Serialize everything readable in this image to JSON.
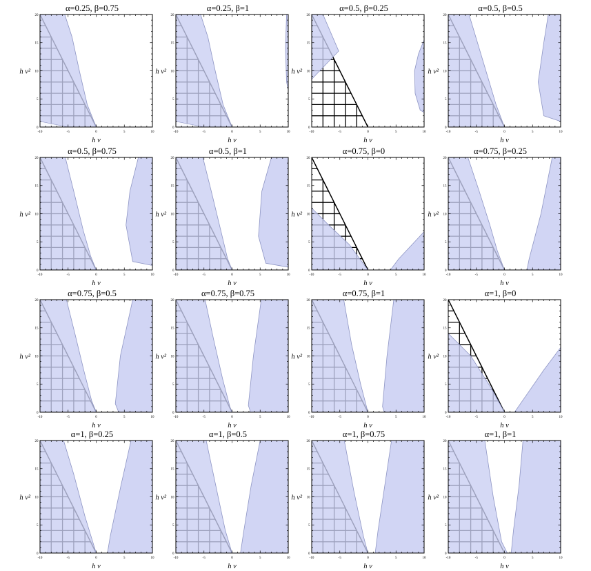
{
  "figure": {
    "panels": [
      {
        "title": "α=0.25, β=0.75"
      },
      {
        "title": "α=0.25, β=1"
      },
      {
        "title": "α=0.5, β=0.25"
      },
      {
        "title": "α=0.5, β=0.5"
      },
      {
        "title": "α=0.5, β=0.75"
      },
      {
        "title": "α=0.5, β=1"
      },
      {
        "title": "α=0.75, β=0"
      },
      {
        "title": "α=0.75, β=0.25"
      },
      {
        "title": "α=0.75, β=0.5"
      },
      {
        "title": "α=0.75, β=0.75"
      },
      {
        "title": "α=0.75, β=1"
      },
      {
        "title": "α=1, β=0"
      },
      {
        "title": "α=1, β=0.25"
      },
      {
        "title": "α=1, β=0.5"
      },
      {
        "title": "α=1, β=0.75"
      },
      {
        "title": "α=1, β=1"
      }
    ]
  },
  "chart_data": {
    "type": "area",
    "layout": "4x4 grid of region plots",
    "xlabel": "h ν",
    "ylabel": "h ν²",
    "xlim": [
      -10,
      10
    ],
    "ylim": [
      0,
      20
    ],
    "x_ticks": [
      -10,
      -5,
      0,
      5,
      10
    ],
    "y_ticks": [
      0,
      5,
      10,
      15,
      20
    ],
    "colors": {
      "region_fill": "#c9cef2",
      "region_edge": "#8e95c4",
      "hatch": "#000000",
      "frame": "#000000"
    },
    "hatched_region": "triangle bounded by x=-10, y=0 and the line y=-2x",
    "panels": [
      {
        "alpha": 0.25,
        "beta": 0.75,
        "left_region": [
          [
            -10,
            20
          ],
          [
            -5.6,
            20
          ],
          [
            -4.3,
            16
          ],
          [
            -3,
            10
          ],
          [
            -1.6,
            4
          ],
          [
            0,
            0
          ],
          [
            -10,
            0
          ]
        ],
        "left_white_wedge": [
          [
            -10,
            1
          ],
          [
            -10,
            0
          ],
          [
            -5,
            0
          ]
        ],
        "right_region": null
      },
      {
        "alpha": 0.25,
        "beta": 1,
        "left_region": [
          [
            -10,
            20
          ],
          [
            -5.6,
            20
          ],
          [
            -4.3,
            16
          ],
          [
            -3,
            10
          ],
          [
            -1.6,
            4
          ],
          [
            0,
            0
          ],
          [
            -10,
            0
          ]
        ],
        "left_white_wedge": [
          [
            -10,
            1
          ],
          [
            -10,
            0
          ],
          [
            -5,
            0
          ]
        ],
        "right_region": [
          [
            9.7,
            20
          ],
          [
            10,
            20
          ],
          [
            10,
            6.6
          ],
          [
            9.7,
            8
          ],
          [
            9.5,
            14
          ]
        ]
      },
      {
        "alpha": 0.5,
        "beta": 0.25,
        "left_region": [
          [
            -10,
            20
          ],
          [
            -8,
            20
          ],
          [
            -5.2,
            13.5
          ],
          [
            -10,
            8.5
          ]
        ],
        "right_region": [
          [
            10,
            15.5
          ],
          [
            10,
            2.6
          ],
          [
            9.3,
            3
          ],
          [
            8.4,
            6
          ],
          [
            8.3,
            10
          ],
          [
            9,
            13
          ]
        ]
      },
      {
        "alpha": 0.5,
        "beta": 0.5,
        "left_region": [
          [
            -10,
            20
          ],
          [
            -6.3,
            20
          ],
          [
            -4.5,
            14
          ],
          [
            -2.7,
            8
          ],
          [
            -1.5,
            4
          ],
          [
            0,
            0
          ],
          [
            -10,
            0
          ]
        ],
        "right_region": [
          [
            7.8,
            20
          ],
          [
            10,
            20
          ],
          [
            10,
            1
          ],
          [
            7,
            2
          ],
          [
            6,
            8
          ],
          [
            7,
            15
          ]
        ]
      },
      {
        "alpha": 0.5,
        "beta": 0.75,
        "left_region": [
          [
            -10,
            20
          ],
          [
            -5.5,
            20
          ],
          [
            -4,
            14
          ],
          [
            -2.3,
            7
          ],
          [
            -1,
            2.5
          ],
          [
            0,
            0
          ],
          [
            -10,
            0
          ]
        ],
        "right_region": [
          [
            7.5,
            20
          ],
          [
            10,
            20
          ],
          [
            10,
            0.8
          ],
          [
            6.5,
            1.5
          ],
          [
            5.3,
            8
          ],
          [
            6,
            14
          ]
        ]
      },
      {
        "alpha": 0.5,
        "beta": 1,
        "left_region": [
          [
            -10,
            20
          ],
          [
            -5.2,
            20
          ],
          [
            -3.7,
            14
          ],
          [
            -2,
            7
          ],
          [
            -0.8,
            2
          ],
          [
            0,
            0
          ],
          [
            -10,
            0
          ]
        ],
        "right_region": [
          [
            7,
            20
          ],
          [
            10,
            20
          ],
          [
            10,
            0.5
          ],
          [
            6,
            1.2
          ],
          [
            4.7,
            6
          ],
          [
            5.3,
            14
          ]
        ]
      },
      {
        "alpha": 0.75,
        "beta": 0,
        "left_region": [
          [
            -10,
            11
          ],
          [
            -7,
            8
          ],
          [
            -3.3,
            4.5
          ],
          [
            0,
            0
          ],
          [
            -10,
            0
          ]
        ],
        "right_region": [
          [
            4,
            0
          ],
          [
            10,
            0
          ],
          [
            10,
            6.8
          ],
          [
            5.5,
            2
          ]
        ]
      },
      {
        "alpha": 0.75,
        "beta": 0.25,
        "left_region": [
          [
            -10,
            20
          ],
          [
            -6.5,
            20
          ],
          [
            -4.5,
            14
          ],
          [
            -2.6,
            8
          ],
          [
            -1.3,
            3.5
          ],
          [
            0,
            0
          ],
          [
            -10,
            0
          ]
        ],
        "right_region": [
          [
            8.5,
            20
          ],
          [
            10,
            20
          ],
          [
            10,
            0
          ],
          [
            4,
            0
          ],
          [
            4.4,
            2
          ],
          [
            6.5,
            10
          ]
        ]
      },
      {
        "alpha": 0.75,
        "beta": 0.5,
        "left_region": [
          [
            -10,
            20
          ],
          [
            -5.3,
            20
          ],
          [
            -3.8,
            14
          ],
          [
            -2.1,
            7
          ],
          [
            -0.8,
            2
          ],
          [
            0,
            0
          ],
          [
            -10,
            0
          ]
        ],
        "right_region": [
          [
            6.5,
            20
          ],
          [
            10,
            20
          ],
          [
            10,
            0
          ],
          [
            4,
            0
          ],
          [
            3.4,
            1.5
          ],
          [
            4.3,
            10
          ]
        ]
      },
      {
        "alpha": 0.75,
        "beta": 0.75,
        "left_region": [
          [
            -10,
            20
          ],
          [
            -4.8,
            20
          ],
          [
            -3.3,
            13
          ],
          [
            -1.7,
            6
          ],
          [
            -0.4,
            1
          ],
          [
            0,
            0
          ],
          [
            -10,
            0
          ]
        ],
        "right_region": [
          [
            5.2,
            20
          ],
          [
            10,
            20
          ],
          [
            10,
            0
          ],
          [
            3.3,
            0
          ],
          [
            2.9,
            1.2
          ],
          [
            3.8,
            10
          ]
        ]
      },
      {
        "alpha": 0.75,
        "beta": 1,
        "left_region": [
          [
            -10,
            20
          ],
          [
            -4.3,
            20
          ],
          [
            -2.9,
            12
          ],
          [
            -1.3,
            5
          ],
          [
            0,
            0
          ],
          [
            -10,
            0
          ]
        ],
        "right_region": [
          [
            4.6,
            20
          ],
          [
            10,
            20
          ],
          [
            10,
            0
          ],
          [
            2.9,
            0
          ],
          [
            2.6,
            1
          ],
          [
            3.4,
            10
          ]
        ]
      },
      {
        "alpha": 1,
        "beta": 0,
        "left_region": [
          [
            -10,
            14
          ],
          [
            -6,
            10
          ],
          [
            -2.5,
            4.5
          ],
          [
            0,
            0
          ],
          [
            -10,
            0
          ]
        ],
        "right_region": [
          [
            1.8,
            0
          ],
          [
            10,
            0
          ],
          [
            10,
            11.5
          ],
          [
            7,
            7.5
          ]
        ]
      },
      {
        "alpha": 1,
        "beta": 0.25,
        "left_region": [
          [
            -10,
            20
          ],
          [
            -5.8,
            20
          ],
          [
            -4,
            14
          ],
          [
            -2,
            6.5
          ],
          [
            0,
            0
          ],
          [
            -10,
            0
          ]
        ],
        "right_region": [
          [
            6.2,
            20
          ],
          [
            10,
            20
          ],
          [
            10,
            0
          ],
          [
            2,
            0
          ],
          [
            2.5,
            3
          ],
          [
            4.4,
            12
          ]
        ]
      },
      {
        "alpha": 1,
        "beta": 0.5,
        "left_region": [
          [
            -10,
            20
          ],
          [
            -4.6,
            20
          ],
          [
            -2.9,
            12
          ],
          [
            -1.2,
            4
          ],
          [
            0,
            0
          ],
          [
            -10,
            0
          ]
        ],
        "right_region": [
          [
            5,
            20
          ],
          [
            10,
            20
          ],
          [
            10,
            0
          ],
          [
            1.5,
            0
          ],
          [
            2.1,
            4
          ],
          [
            3.4,
            12
          ]
        ]
      },
      {
        "alpha": 1,
        "beta": 0.75,
        "left_region": [
          [
            -10,
            20
          ],
          [
            -4.2,
            20
          ],
          [
            -2.5,
            11
          ],
          [
            -0.8,
            3
          ],
          [
            0,
            0
          ],
          [
            -10,
            0
          ]
        ],
        "right_region": [
          [
            4.2,
            20
          ],
          [
            10,
            20
          ],
          [
            10,
            0
          ],
          [
            1.3,
            0
          ],
          [
            1.8,
            4
          ],
          [
            3,
            12
          ]
        ]
      },
      {
        "alpha": 1,
        "beta": 1,
        "left_region": [
          [
            -10,
            20
          ],
          [
            -3.5,
            20
          ],
          [
            -2,
            10
          ],
          [
            -0.5,
            2
          ],
          [
            0.5,
            0
          ],
          [
            -10,
            0
          ]
        ],
        "right_region": [
          [
            3.3,
            20
          ],
          [
            10,
            20
          ],
          [
            10,
            0
          ],
          [
            1.2,
            0
          ],
          [
            1.6,
            4
          ],
          [
            2.6,
            12
          ]
        ]
      }
    ]
  }
}
